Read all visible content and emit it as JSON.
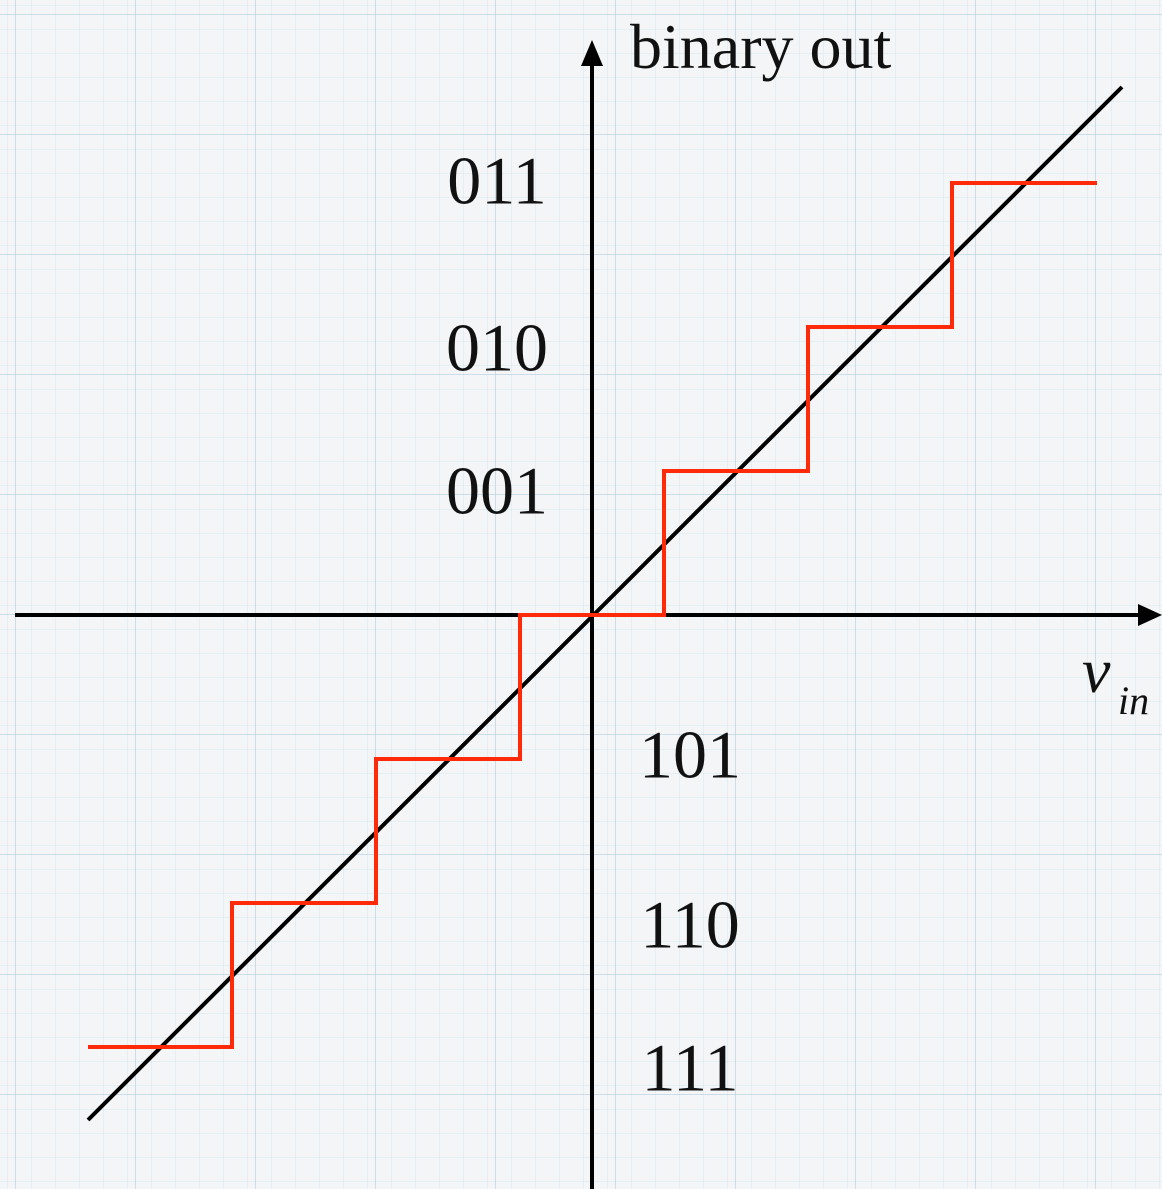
{
  "axes": {
    "y_label": "binary out",
    "x_label": "v",
    "x_label_subscript": "in"
  },
  "codes": [
    "011",
    "010",
    "001",
    "101",
    "110",
    "111"
  ]
}
